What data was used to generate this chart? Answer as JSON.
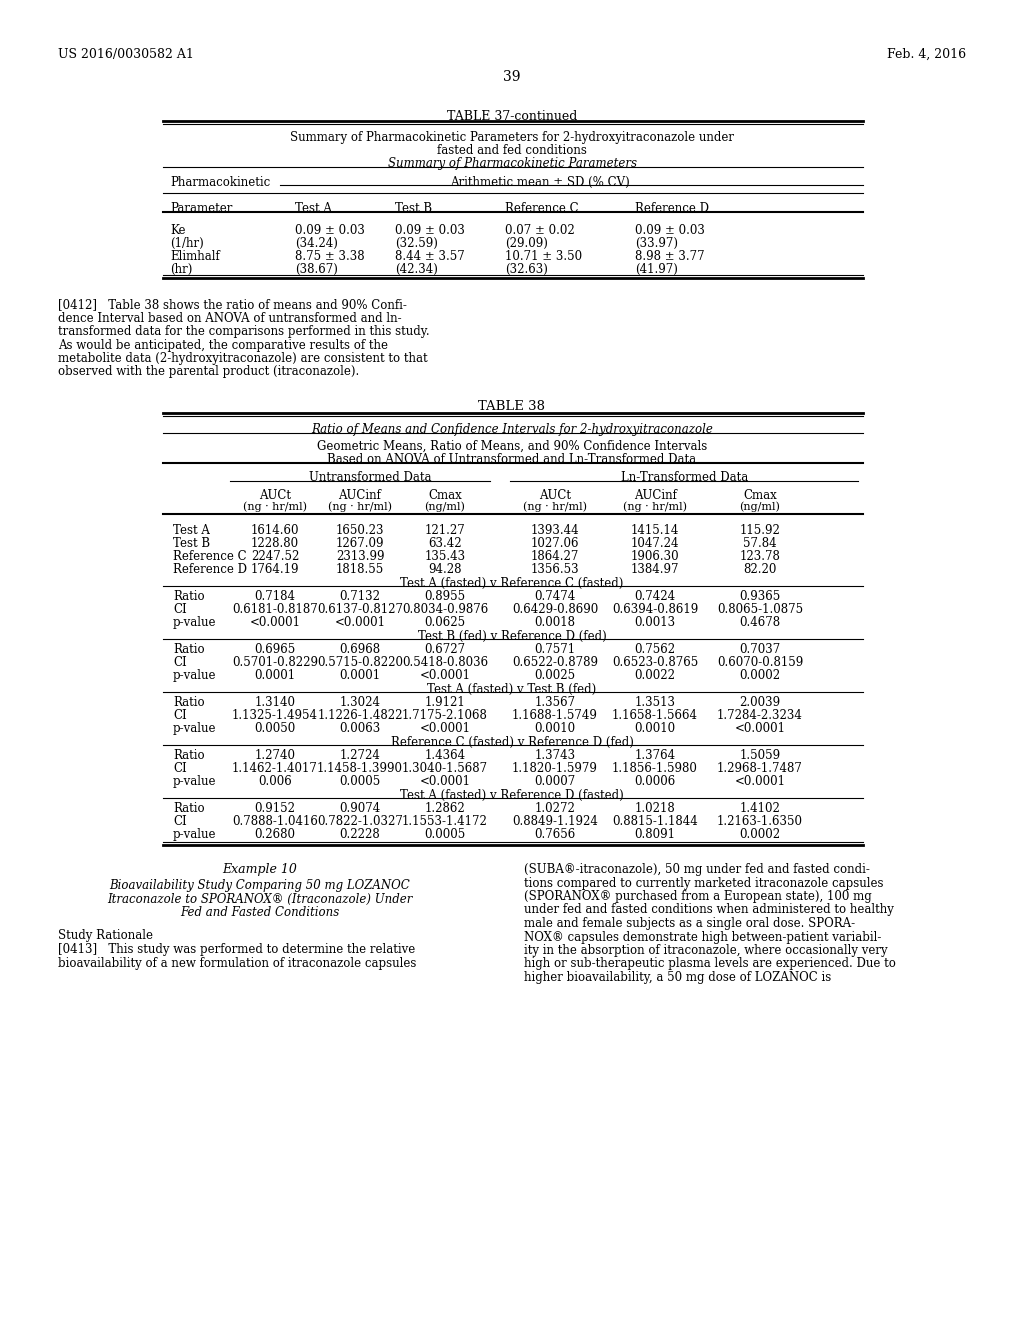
{
  "header_left": "US 2016/0030582 A1",
  "header_right": "Feb. 4, 2016",
  "page_number": "39",
  "table37_title": "TABLE 37-continued",
  "table37_subtitle1": "Summary of Pharmacokinetic Parameters for 2-hydroxyitraconazole under",
  "table37_subtitle2": "fasted and fed conditions",
  "table37_subtitle3": "Summary of Pharmacokinetic Parameters",
  "table37_col_header1": "Pharmacokinetic",
  "table37_col_header2": "Arithmetic mean ± SD (% CV)",
  "table37_sub_headers": [
    "Parameter",
    "Test A",
    "Test B",
    "Reference C",
    "Reference D"
  ],
  "table37_rows": [
    [
      "Ke",
      "0.09 ± 0.03",
      "0.09 ± 0.03",
      "0.07 ± 0.02",
      "0.09 ± 0.03"
    ],
    [
      "(1/hr)",
      "(34.24)",
      "(32.59)",
      "(29.09)",
      "(33.97)"
    ],
    [
      "Elimhalf",
      "8.75 ± 3.38",
      "8.44 ± 3.57",
      "10.71 ± 3.50",
      "8.98 ± 3.77"
    ],
    [
      "(hr)",
      "(38.67)",
      "(42.34)",
      "(32.63)",
      "(41.97)"
    ]
  ],
  "para0412_lines": [
    "[0412]   Table 38 shows the ratio of means and 90% Confi-",
    "dence Interval based on ANOVA of untransformed and ln-",
    "transformed data for the comparisons performed in this study.",
    "As would be anticipated, the comparative results of the",
    "metabolite data (2-hydroxyitraconazole) are consistent to that",
    "observed with the parental product (itraconazole)."
  ],
  "table38_title": "TABLE 38",
  "table38_subtitle1": "Ratio of Means and Confidence Intervals for 2-hydroxyitraconazole",
  "table38_subtitle2": "Geometric Means, Ratio of Means, and 90% Confidence Intervals",
  "table38_subtitle3": "Based on ANOVA of Untransformed and Ln-Transformed Data",
  "table38_untransformed": "Untransformed Data",
  "table38_lntransformed": "Ln-Transformed Data",
  "table38_col_labels": [
    "",
    "AUCt",
    "AUCinf",
    "Cmax",
    "AUCt",
    "AUCinf",
    "Cmax"
  ],
  "table38_col_units": [
    "",
    "(ng · hr/ml)",
    "(ng · hr/ml)",
    "(ng/ml)",
    "(ng · hr/ml)",
    "(ng · hr/ml)",
    "(ng/ml)"
  ],
  "table38_data_rows": [
    [
      "Test A",
      "1614.60",
      "1650.23",
      "121.27",
      "1393.44",
      "1415.14",
      "115.92"
    ],
    [
      "Test B",
      "1228.80",
      "1267.09",
      "63.42",
      "1027.06",
      "1047.24",
      "57.84"
    ],
    [
      "Reference C",
      "2247.52",
      "2313.99",
      "135.43",
      "1864.27",
      "1906.30",
      "123.78"
    ],
    [
      "Reference D",
      "1764.19",
      "1818.55",
      "94.28",
      "1356.53",
      "1384.97",
      "82.20"
    ]
  ],
  "table38_sections": [
    {
      "label": "Test A (fasted) v Reference C (fasted)",
      "rows": [
        [
          "Ratio",
          "0.7184",
          "0.7132",
          "0.8955",
          "0.7474",
          "0.7424",
          "0.9365"
        ],
        [
          "CI",
          "0.6181-0.8187",
          "0.6137-0.8127",
          "0.8034-0.9876",
          "0.6429-0.8690",
          "0.6394-0.8619",
          "0.8065-1.0875"
        ],
        [
          "p-value",
          "<0.0001",
          "<0.0001",
          "0.0625",
          "0.0018",
          "0.0013",
          "0.4678"
        ]
      ]
    },
    {
      "label": "Test B (fed) v Reference D (fed)",
      "rows": [
        [
          "Ratio",
          "0.6965",
          "0.6968",
          "0.6727",
          "0.7571",
          "0.7562",
          "0.7037"
        ],
        [
          "CI",
          "0.5701-0.8229",
          "0.5715-0.8220",
          "0.5418-0.8036",
          "0.6522-0.8789",
          "0.6523-0.8765",
          "0.6070-0.8159"
        ],
        [
          "p-value",
          "0.0001",
          "0.0001",
          "<0.0001",
          "0.0025",
          "0.0022",
          "0.0002"
        ]
      ]
    },
    {
      "label": "Test A (fasted) v Test B (fed)",
      "rows": [
        [
          "Ratio",
          "1.3140",
          "1.3024",
          "1.9121",
          "1.3567",
          "1.3513",
          "2.0039"
        ],
        [
          "CI",
          "1.1325-1.4954",
          "1.1226-1.4822",
          "1.7175-2.1068",
          "1.1688-1.5749",
          "1.1658-1.5664",
          "1.7284-2.3234"
        ],
        [
          "p-value",
          "0.0050",
          "0.0063",
          "<0.0001",
          "0.0010",
          "0.0010",
          "<0.0001"
        ]
      ]
    },
    {
      "label": "Reference C (fasted) v Reference D (fed)",
      "rows": [
        [
          "Ratio",
          "1.2740",
          "1.2724",
          "1.4364",
          "1.3743",
          "1.3764",
          "1.5059"
        ],
        [
          "CI",
          "1.1462-1.4017",
          "1.1458-1.3990",
          "1.3040-1.5687",
          "1.1820-1.5979",
          "1.1856-1.5980",
          "1.2968-1.7487"
        ],
        [
          "p-value",
          "0.006",
          "0.0005",
          "<0.0001",
          "0.0007",
          "0.0006",
          "<0.0001"
        ]
      ]
    },
    {
      "label": "Test A (fasted) v Reference D (fasted)",
      "rows": [
        [
          "Ratio",
          "0.9152",
          "0.9074",
          "1.2862",
          "1.0272",
          "1.0218",
          "1.4102"
        ],
        [
          "CI",
          "0.7888-1.0416",
          "0.7822-1.0327",
          "1.1553-1.4172",
          "0.8849-1.1924",
          "0.8815-1.1844",
          "1.2163-1.6350"
        ],
        [
          "p-value",
          "0.2680",
          "0.2228",
          "0.0005",
          "0.7656",
          "0.8091",
          "0.0002"
        ]
      ]
    }
  ],
  "example10_title": "Example 10",
  "example10_subtitle_lines": [
    "Bioavailability Study Comparing 50 mg LOZANOC",
    "Itraconazole to SPORANOX® (Itraconazole) Under",
    "Fed and Fasted Conditions"
  ],
  "study_rationale": "Study Rationale",
  "para0413_left_lines": [
    "[0413]   This study was performed to determine the relative",
    "bioavailability of a new formulation of itraconazole capsules"
  ],
  "para0413_right_lines": [
    "(SUBA®-itraconazole), 50 mg under fed and fasted condi-",
    "tions compared to currently marketed itraconazole capsules",
    "(SPORANOX® purchased from a European state), 100 mg",
    "under fed and fasted conditions when administered to healthy",
    "male and female subjects as a single oral dose. SPORA-",
    "NOX® capsules demonstrate high between-patient variabil-",
    "ity in the absorption of itraconazole, where occasionally very",
    "high or sub-therapeutic plasma levels are experienced. Due to",
    "higher bioavailability, a 50 mg dose of LOZANOC is"
  ]
}
